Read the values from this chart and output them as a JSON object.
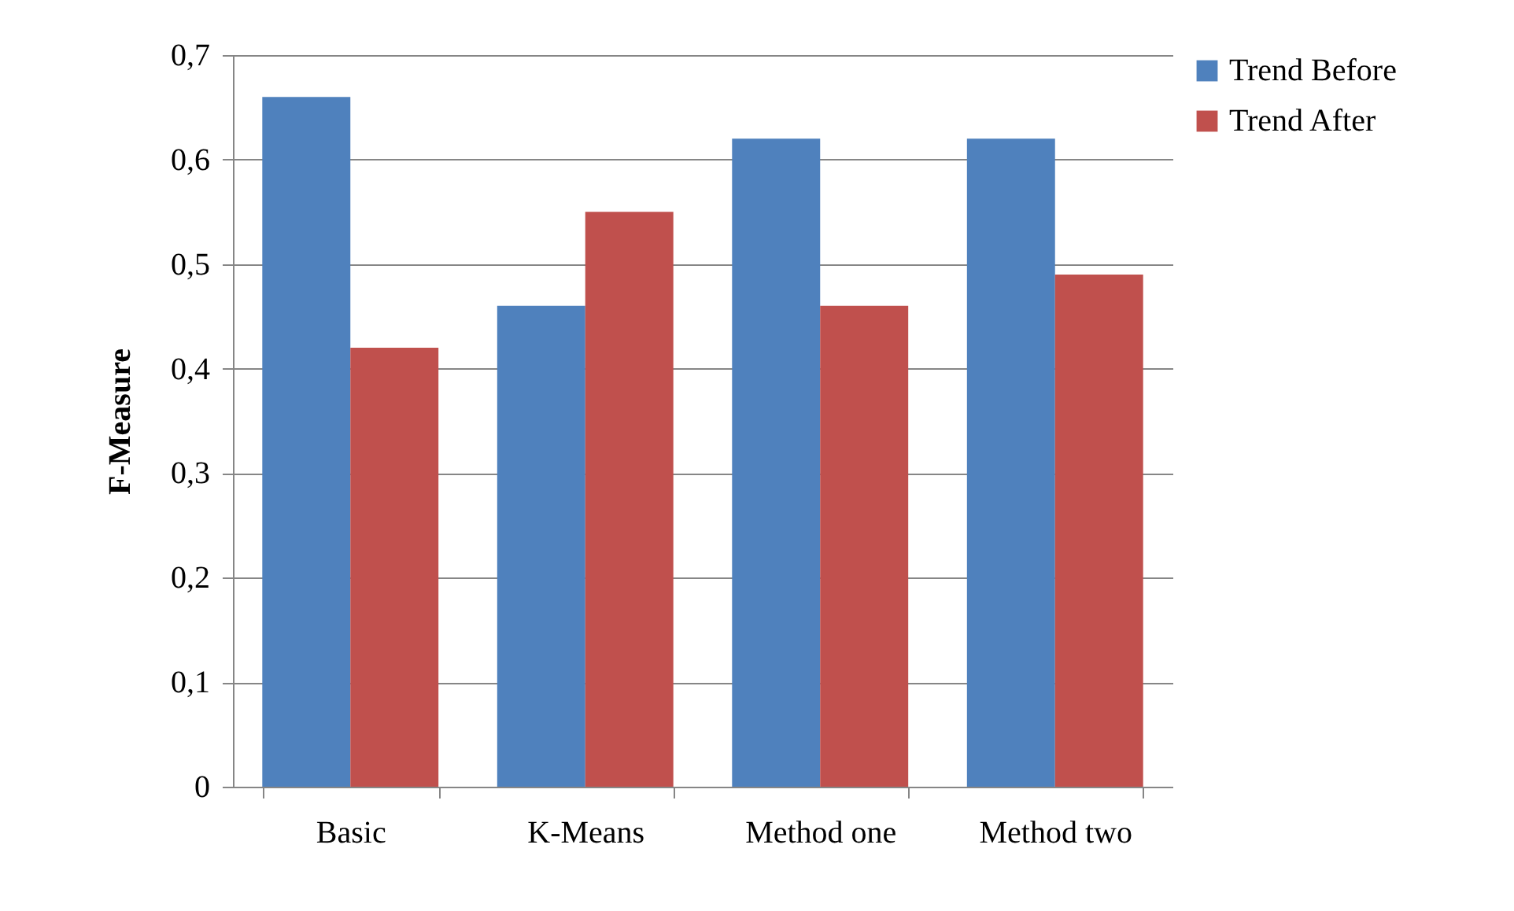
{
  "chart_data": {
    "type": "bar",
    "ylabel": "F-Measure",
    "categories": [
      "Basic",
      "K-Means",
      "Method one",
      "Method two"
    ],
    "series": [
      {
        "name": "Trend Before",
        "color": "#4f81bd",
        "values": [
          0.66,
          0.46,
          0.62,
          0.62
        ]
      },
      {
        "name": "Trend After",
        "color": "#c0504d",
        "values": [
          0.42,
          0.55,
          0.46,
          0.49
        ]
      }
    ],
    "ylim": [
      0,
      0.7
    ],
    "yticks": [
      0,
      {
        "value": 0.1,
        "label": "0,1"
      },
      {
        "value": 0.2,
        "label": "0,2"
      },
      {
        "value": 0.3,
        "label": "0,3"
      },
      {
        "value": 0.4,
        "label": "0,4"
      },
      {
        "value": 0.5,
        "label": "0,5"
      },
      {
        "value": 0.6,
        "label": "0,6"
      },
      {
        "value": 0.7,
        "label": "0,7"
      }
    ],
    "grid": "y",
    "legend": "right"
  }
}
